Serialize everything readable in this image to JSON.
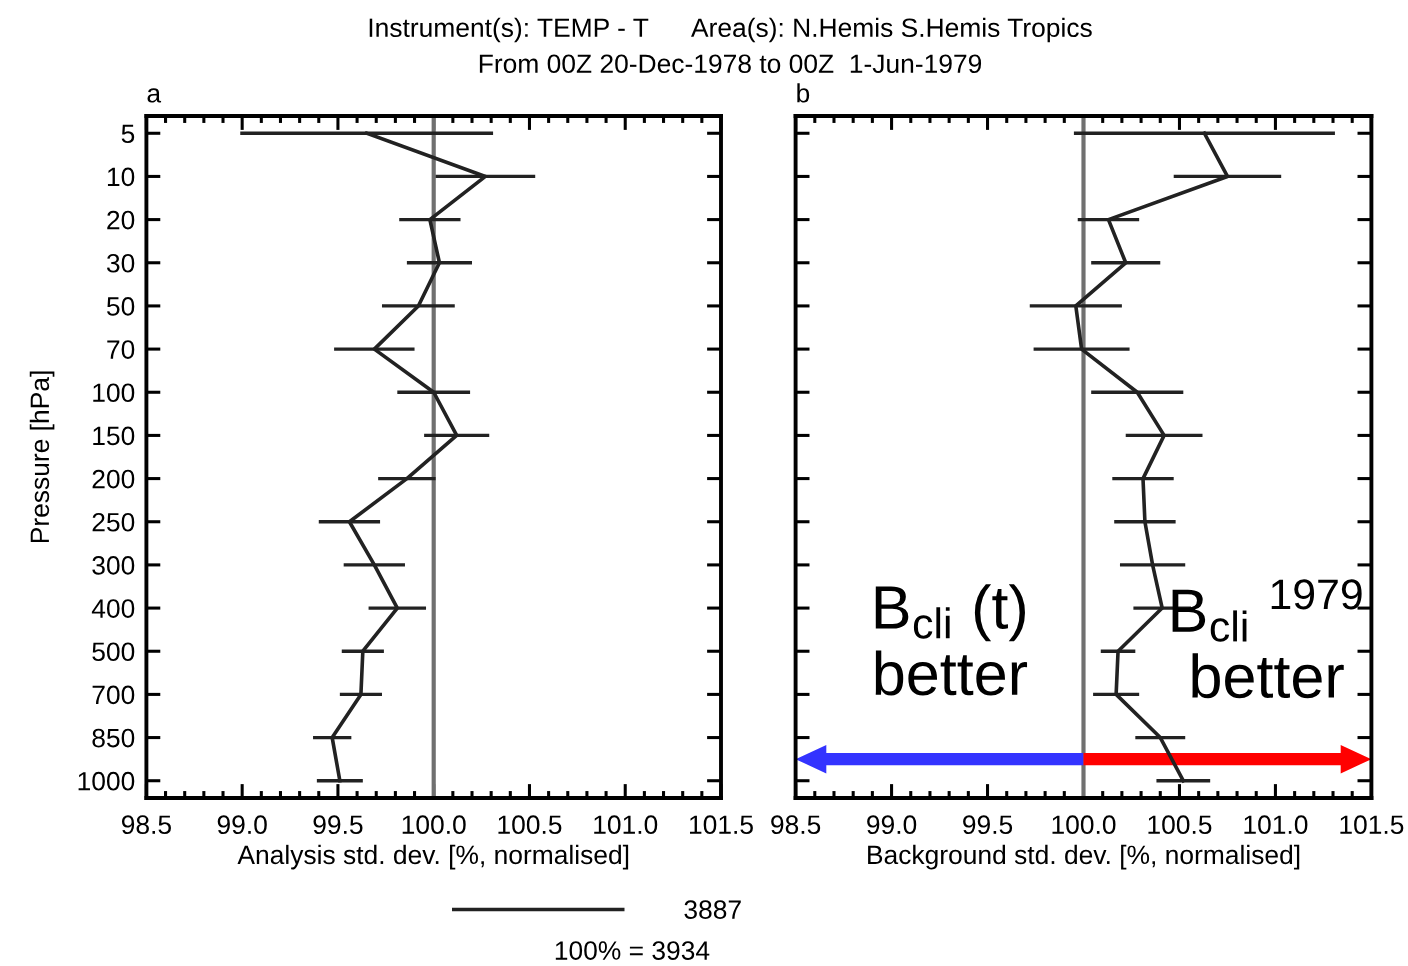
{
  "chart_data": [
    {
      "type": "line",
      "orientation": "horizontal",
      "title": "Instrument(s): TEMP - T      Area(s): N.Hemis S.Hemis Tropics",
      "subtitle": "From 00Z 20-Dec-1978 to 00Z  1-Jun-1979",
      "xlabel": "Analysis std. dev. [%, normalised]",
      "ylabel": "Pressure [hPa]",
      "categories": [
        "5",
        "10",
        "20",
        "30",
        "50",
        "70",
        "100",
        "150",
        "200",
        "250",
        "300",
        "400",
        "500",
        "700",
        "850",
        "1000"
      ],
      "series": [
        {
          "name": "3887",
          "color": "#222222",
          "values": [
            99.65,
            100.27,
            99.98,
            100.03,
            99.92,
            99.69,
            100.0,
            100.12,
            99.86,
            99.56,
            99.69,
            99.81,
            99.63,
            99.62,
            99.47,
            99.51
          ],
          "errors": [
            0.66,
            0.26,
            0.16,
            0.17,
            0.19,
            0.21,
            0.19,
            0.17,
            0.15,
            0.16,
            0.16,
            0.15,
            0.11,
            0.11,
            0.1,
            0.12
          ]
        }
      ],
      "xlim": [
        98.5,
        101.5
      ],
      "xticks": [
        98.5,
        {
          "value": 99,
          "label": "99.0"
        },
        99.5,
        {
          "value": 100,
          "label": "100.0"
        },
        100.5,
        {
          "value": 101,
          "label": "101.0"
        },
        101.5
      ],
      "ref_lines": [
        {
          "axis": "x",
          "value": 100,
          "color": "#707070"
        }
      ],
      "legend": "bottom",
      "annotations": [
        "a",
        "100% = 3934"
      ]
    },
    {
      "type": "line",
      "orientation": "horizontal",
      "xlabel": "Background std. dev. [%, normalised]",
      "categories": [
        "5",
        "10",
        "20",
        "30",
        "50",
        "70",
        "100",
        "150",
        "200",
        "250",
        "300",
        "400",
        "500",
        "700",
        "850",
        "1000"
      ],
      "series": [
        {
          "color": "#222222",
          "values": [
            100.63,
            100.75,
            100.13,
            100.22,
            99.96,
            99.99,
            100.28,
            100.42,
            100.31,
            100.32,
            100.36,
            100.41,
            100.18,
            100.17,
            100.4,
            100.52
          ],
          "errors": [
            0.68,
            0.28,
            0.16,
            0.18,
            0.24,
            0.25,
            0.24,
            0.2,
            0.16,
            0.16,
            0.17,
            0.15,
            0.09,
            0.12,
            0.13,
            0.14
          ]
        }
      ],
      "xlim": [
        98.5,
        101.5
      ],
      "xticks": [
        98.5,
        {
          "value": 99,
          "label": "99.0"
        },
        99.5,
        {
          "value": 100,
          "label": "100.0"
        },
        100.5,
        {
          "value": 101,
          "label": "101.0"
        },
        101.5
      ],
      "ref_lines": [
        {
          "axis": "x",
          "value": 100,
          "color": "#707070"
        }
      ],
      "tick_labels": "x",
      "annotations": [
        "b",
        "B$_{cli}$ (t)\nbetter",
        "B$_{cli}$ $^{1979}$\nbetter"
      ]
    }
  ]
}
